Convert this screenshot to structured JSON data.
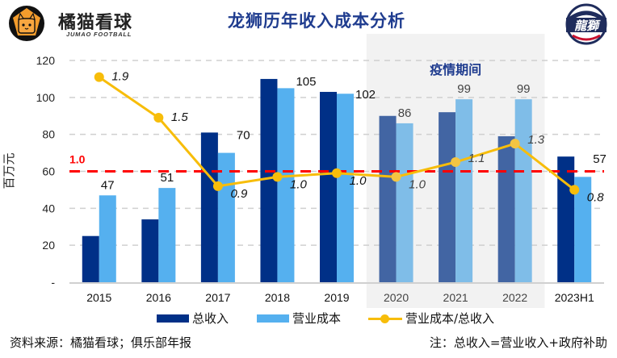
{
  "header": {
    "brand_name": "橘猫看球",
    "brand_sub": "JUMAO FOOTBALL",
    "title": "龙狮历年收入成本分析",
    "left_logo_icon": "cat-football-logo-icon",
    "right_logo_icon": "long-lions-team-logo-icon"
  },
  "chart_data": {
    "type": "bar",
    "title": "龙狮历年收入成本分析",
    "xlabel": "",
    "ylabel": "百万元",
    "ylim": [
      0,
      120
    ],
    "yticks": [
      "-",
      "20",
      "40",
      "60",
      "80",
      "100",
      "120"
    ],
    "ytick_values": [
      0,
      20,
      40,
      60,
      80,
      100,
      120
    ],
    "grid": true,
    "legend_position": "bottom",
    "categories": [
      "2015",
      "2016",
      "2017",
      "2018",
      "2019",
      "2020",
      "2021",
      "2022",
      "2023H1"
    ],
    "series": [
      {
        "name": "总收入",
        "type": "bar",
        "color": "#003087",
        "muted_color": "#4265a3",
        "values": [
          25,
          34,
          81,
          110,
          103,
          90,
          92,
          79,
          68
        ]
      },
      {
        "name": "营业成本",
        "type": "bar",
        "color": "#55b0ef",
        "muted_color": "#7fbde8",
        "values": [
          47,
          51,
          70,
          105,
          102,
          86,
          99,
          99,
          57
        ],
        "labels": [
          "47",
          "51",
          "70",
          "105",
          "102",
          "86",
          "99",
          "99",
          "57"
        ]
      },
      {
        "name": "营业成本/总收入",
        "type": "line",
        "color": "#f7bd0a",
        "axis": "secondary",
        "secondary_scale_note": "1.0 maps to 60 on primary axis",
        "values": [
          1.9,
          1.5,
          0.9,
          1.0,
          1.0,
          1.0,
          1.1,
          1.3,
          0.8
        ],
        "labels": [
          "1.9",
          "1.5",
          "0.9",
          "1.0",
          "1.0",
          "1.0",
          "1.1",
          "1.3",
          "0.8"
        ]
      }
    ],
    "reference_line": {
      "label": "1.0",
      "ratio_value": 1.0,
      "color": "#ff0000",
      "style": "dashed"
    },
    "highlight_region": {
      "label": "疫情期间",
      "categories": [
        "2020",
        "2021",
        "2022"
      ],
      "color": "#f2f2f2",
      "label_color": "#1f3c8f"
    }
  },
  "legend": {
    "items": [
      {
        "label": "总收入",
        "color": "#003087",
        "kind": "bar"
      },
      {
        "label": "营业成本",
        "color": "#55b0ef",
        "kind": "bar"
      },
      {
        "label": "营业成本/总收入",
        "color": "#f7bd0a",
        "kind": "line"
      }
    ]
  },
  "footer": {
    "source": "资料来源：橘猫看球；俱乐部年报",
    "note": "注：总收入=营业收入+政府补助"
  }
}
